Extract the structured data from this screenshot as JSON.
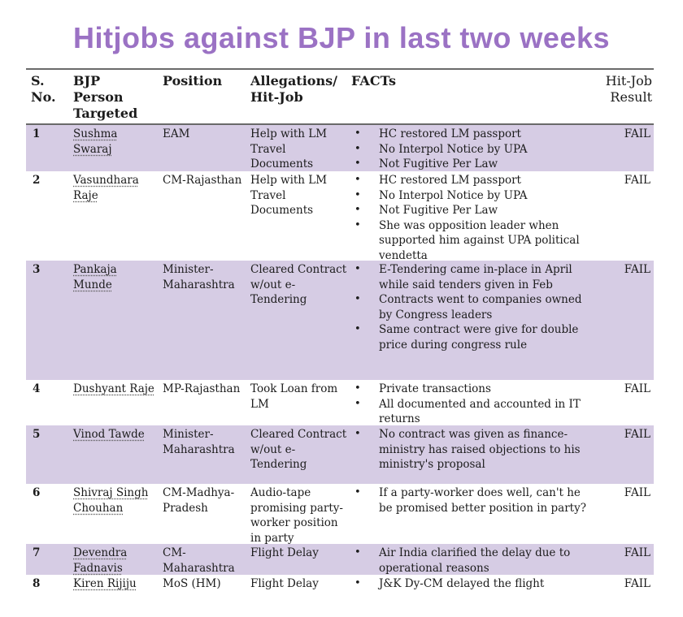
{
  "title": "Hitjobs against BJP in last two weeks",
  "columns": {
    "no": "S. No.",
    "person": "BJP Person Targeted",
    "position": "Position",
    "allegation": "Allegations/ Hit-Job",
    "facts": "FACTs",
    "result": "Hit-Job Result"
  },
  "rows": [
    {
      "no": "1",
      "person": "Sushma Swaraj",
      "position": "EAM",
      "allegation": "Help with LM Travel Documents",
      "facts": [
        "HC restored LM passport",
        "No Interpol Notice by UPA",
        "Not Fugitive Per Law"
      ],
      "result": "FAIL"
    },
    {
      "no": "2",
      "person": "Vasundhara Raje",
      "position": "CM-Rajasthan",
      "allegation": "Help with LM Travel Documents",
      "facts": [
        "HC restored LM passport",
        "No Interpol Notice by UPA",
        "Not Fugitive Per Law",
        "She was opposition leader when supported him against UPA political vendetta"
      ],
      "result": "FAIL"
    },
    {
      "no": "3",
      "person": "Pankaja Munde",
      "position": "Minister-Maharashtra",
      "allegation": "Cleared Contract w/out e-Tendering",
      "facts": [
        "E-Tendering came in-place in April while said tenders given in Feb",
        "Contracts went to companies owned by Congress leaders",
        "Same contract were give for double price during congress rule"
      ],
      "result": "FAIL"
    },
    {
      "no": "4",
      "person": "Dushyant Raje",
      "position": "MP-Rajasthan",
      "allegation": "Took Loan from LM",
      "facts": [
        "Private transactions",
        "All documented and accounted in IT returns"
      ],
      "result": "FAIL"
    },
    {
      "no": "5",
      "person": "Vinod Tawde",
      "position": "Minister-Maharashtra",
      "allegation": "Cleared Contract w/out e-Tendering",
      "facts": [
        "No contract was given as finance-ministry has raised objections to his ministry's proposal"
      ],
      "result": "FAIL"
    },
    {
      "no": "6",
      "person": "Shivraj Singh Chouhan",
      "position": "CM-Madhya-Pradesh",
      "allegation": "Audio-tape promising party-worker position in party",
      "facts": [
        "If a party-worker does well, can't he be promised better position in party?"
      ],
      "result": "FAIL"
    },
    {
      "no": "7",
      "person": "Devendra Fadnavis",
      "position": "CM-Maharashtra",
      "allegation": "Flight Delay",
      "facts": [
        "Air India clarified the delay due to operational reasons"
      ],
      "result": "FAIL"
    },
    {
      "no": "8",
      "person": "Kiren Rijiju",
      "position": "MoS (HM)",
      "allegation": "Flight Delay",
      "facts": [
        "J&K Dy-CM delayed the flight"
      ],
      "result": "FAIL"
    }
  ]
}
